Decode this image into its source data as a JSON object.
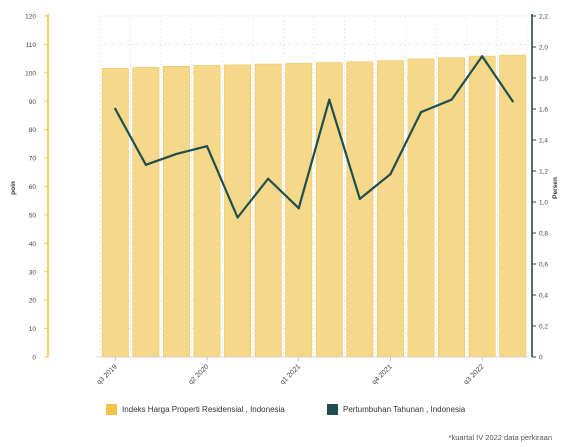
{
  "chart_data": {
    "type": "bar",
    "categories": [
      "q3 2019",
      "q4 2019",
      "q1 2020",
      "q2 2020",
      "q3 2020",
      "q4 2020",
      "q1 2021",
      "q2 2021",
      "q3 2021",
      "q4 2021",
      "q1 2022",
      "q2 2022",
      "q3 2022",
      "q4 2022"
    ],
    "x_tick_labels": [
      "q3 2019",
      "q2 2020",
      "q1 2021",
      "q4 2021",
      "q3 2022"
    ],
    "x_tick_indices": [
      0,
      3,
      6,
      9,
      12
    ],
    "series": [
      {
        "name": "Indeks Harga Properti Residensial , Indonesia",
        "type": "bar",
        "axis": "left",
        "color": "#f5d88a",
        "values": [
          101.6,
          101.9,
          102.3,
          102.6,
          102.8,
          103.1,
          103.3,
          103.6,
          103.9,
          104.3,
          104.9,
          105.3,
          105.9,
          106.2
        ]
      },
      {
        "name": "Pertumbuhan Tahunan , Indonesia",
        "type": "line",
        "axis": "right",
        "color": "#1f4e4e",
        "values": [
          1.6,
          1.24,
          1.31,
          1.36,
          0.9,
          1.15,
          0.96,
          1.66,
          1.02,
          1.18,
          1.58,
          1.66,
          1.94,
          1.65
        ]
      }
    ],
    "y_left": {
      "label": "poin",
      "ylim": [
        0,
        120
      ],
      "ticks": [
        0,
        10,
        20,
        30,
        40,
        50,
        60,
        70,
        80,
        90,
        100,
        110,
        120
      ],
      "axis_color": "#f2c34a"
    },
    "y_right": {
      "label": "Persen",
      "ylim": [
        0,
        2.2
      ],
      "ticks": [
        "0",
        "0,2",
        "0,4",
        "0,6",
        "0,8",
        "1,0",
        "1,2",
        "1,4",
        "1,6",
        "1,8",
        "2,0",
        "2,2"
      ],
      "axis_color": "#1f4e4e"
    },
    "grid": true,
    "legend_position": "bottom",
    "footnote": "*kuartal IV 2022 data perkiraan"
  }
}
